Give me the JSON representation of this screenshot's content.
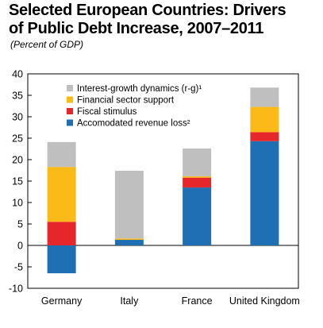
{
  "title_line1": "Selected European Countries: Drivers",
  "title_line2": "of Public Debt Increase, 2007–2011",
  "subtitle": "(Percent of GDP)",
  "chart_data": {
    "type": "bar",
    "stacked": true,
    "categories": [
      "Germany",
      "Italy",
      "France",
      "United Kingdom"
    ],
    "ylim": [
      -10,
      40
    ],
    "yticks": [
      -10,
      -5,
      0,
      5,
      10,
      15,
      20,
      25,
      30,
      35,
      40
    ],
    "grid": false,
    "legend_position": "top-left",
    "series": [
      {
        "name": "Accomodated revenue loss²",
        "color": "#1f6fb4",
        "values": [
          -6.5,
          1.3,
          13.5,
          24.3
        ]
      },
      {
        "name": "Fiscal stimulus",
        "color": "#e5262a",
        "values": [
          5.5,
          0.0,
          2.3,
          2.1
        ]
      },
      {
        "name": "Financial sector support",
        "color": "#fbba17",
        "values": [
          12.8,
          0.3,
          0.3,
          5.9
        ]
      },
      {
        "name": "Interest-growth dynamics (r-g)¹",
        "color": "#bfbfbf",
        "values": [
          5.8,
          15.8,
          6.5,
          4.5
        ]
      }
    ]
  }
}
